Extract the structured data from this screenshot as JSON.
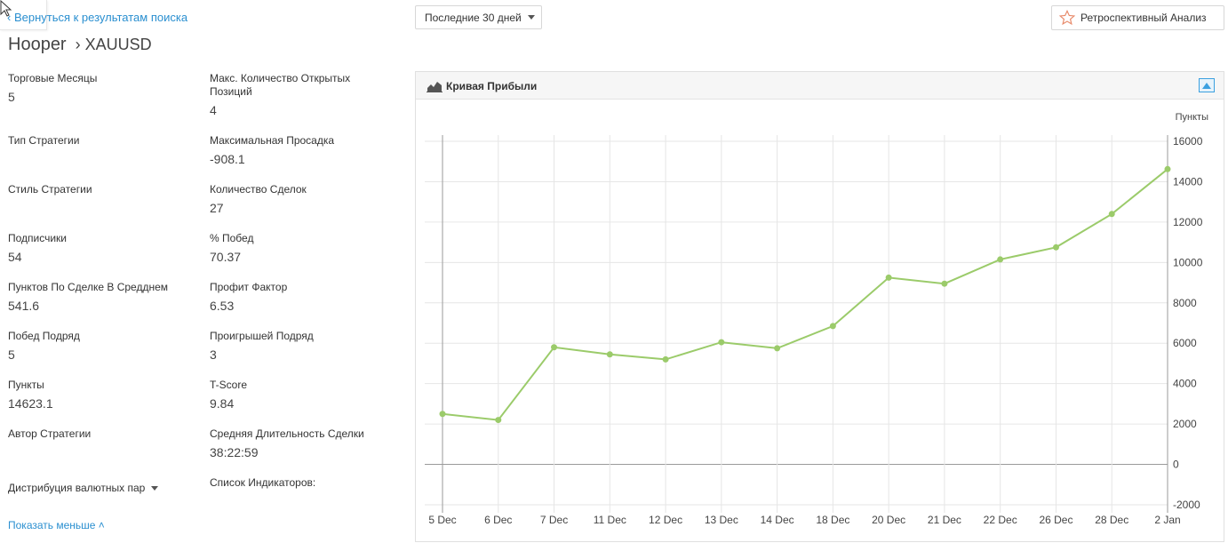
{
  "nav": {
    "back_label": "‹ Вернуться к результатам поиска"
  },
  "header": {
    "strategy_name": "Hooper",
    "symbol": "› XAUUSD",
    "period_selected": "Последние 30 дней",
    "retro_label": "Ретроспективный Анализ"
  },
  "stats_left": [
    {
      "label": "Торговые Месяцы",
      "value": "5"
    },
    {
      "label": "Тип Стратегии",
      "value": ""
    },
    {
      "label": "Стиль Стратегии",
      "value": ""
    },
    {
      "label": "Подписчики",
      "value": "54"
    },
    {
      "label": "Пунктов По Сделке В Средднем",
      "value": "541.6"
    },
    {
      "label": "Побед Подряд",
      "value": "5"
    },
    {
      "label": "Пункты",
      "value": "14623.1"
    },
    {
      "label": "Автор Стратегии",
      "value": ""
    }
  ],
  "stats_right": [
    {
      "label": "Макс. Количество Открытых Позиций",
      "value": "4"
    },
    {
      "label": "Максимальная Просадка",
      "value": "-908.1"
    },
    {
      "label": "Количество Сделок",
      "value": "27"
    },
    {
      "label": "% Побед",
      "value": "70.37"
    },
    {
      "label": "Профит Фактор",
      "value": "6.53"
    },
    {
      "label": "Проигрышей Подряд",
      "value": "3"
    },
    {
      "label": "T-Score",
      "value": "9.84"
    },
    {
      "label": "Средняя Длительность Сделки",
      "value": "38:22:59"
    }
  ],
  "footer": {
    "distribution_label": "Дистрибуция валютных пар",
    "indicators_label": "Список Индикаторов:",
    "show_less_label": "Показать меньше ˄"
  },
  "chart_panel": {
    "title": "Кривая Прибыли",
    "icons": {
      "title": "area-chart-icon",
      "collapse": "collapse-panel-icon"
    }
  },
  "colors": {
    "accent": "#2a8fd0",
    "line": "#9bcb6a",
    "grid": "#e6e6e6"
  },
  "chart_data": {
    "type": "line",
    "ylabel": "Пункты",
    "categories": [
      "5 Dec",
      "6 Dec",
      "7 Dec",
      "11 Dec",
      "12 Dec",
      "13 Dec",
      "14 Dec",
      "18 Dec",
      "20 Dec",
      "21 Dec",
      "22 Dec",
      "26 Dec",
      "28 Dec",
      "2 Jan"
    ],
    "values": [
      2500,
      2200,
      5800,
      5450,
      5200,
      6050,
      5750,
      6850,
      9250,
      8950,
      10150,
      10750,
      12400,
      14623
    ],
    "ylim": [
      -2000,
      16000
    ],
    "yticks": [
      "-2000",
      "0",
      "2000",
      "4000",
      "6000",
      "8000",
      "10000",
      "12000",
      "14000",
      "16000"
    ],
    "grid": true,
    "legend": "none"
  }
}
